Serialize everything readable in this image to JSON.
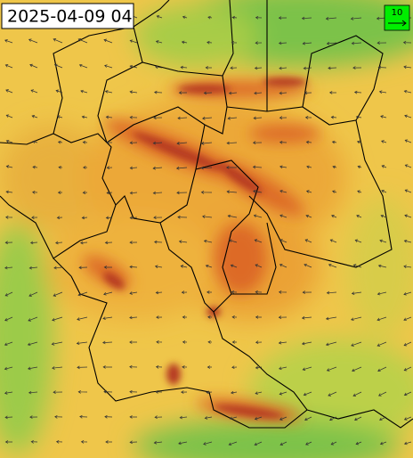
{
  "timestamp": "2025-04-09 04",
  "legend": {
    "label": "10"
  }
}
